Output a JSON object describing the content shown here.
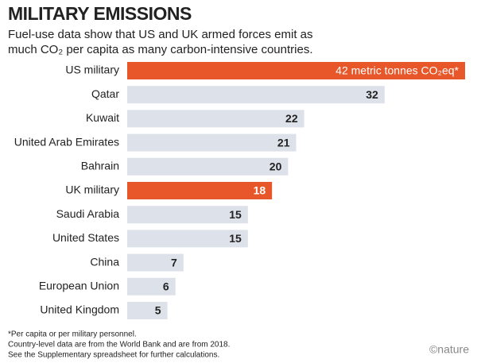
{
  "chart_data": {
    "type": "bar",
    "orientation": "horizontal",
    "title": "MILITARY EMISSIONS",
    "subtitle": [
      "Fuel-use data show that US and UK armed forces emit as",
      "much CO₂ per capita as many carbon-intensive countries."
    ],
    "categories": [
      "US military",
      "Qatar",
      "Kuwait",
      "United Arab Emirates",
      "Bahrain",
      "UK military",
      "Saudi Arabia",
      "United States",
      "China",
      "European Union",
      "United Kingdom"
    ],
    "values": [
      42,
      32,
      22,
      21,
      20,
      18,
      15,
      15,
      7,
      6,
      5
    ],
    "value_labels": [
      "42 metric tonnes CO₂eq*",
      "32",
      "22",
      "21",
      "20",
      "18",
      "15",
      "15",
      "7",
      "6",
      "5"
    ],
    "colors": [
      "#e8572a",
      "#dde1ea",
      "#dde1ea",
      "#dde1ea",
      "#dde1ea",
      "#e8572a",
      "#dde1ea",
      "#dde1ea",
      "#dde1ea",
      "#dde1ea",
      "#dde1ea"
    ],
    "footnotes": [
      "*Per capita or per military personnel.",
      "Country-level data are from the World Bank and are from 2018.",
      "See the Supplementary spreadsheet for further calculations."
    ],
    "credit": "©nature"
  }
}
